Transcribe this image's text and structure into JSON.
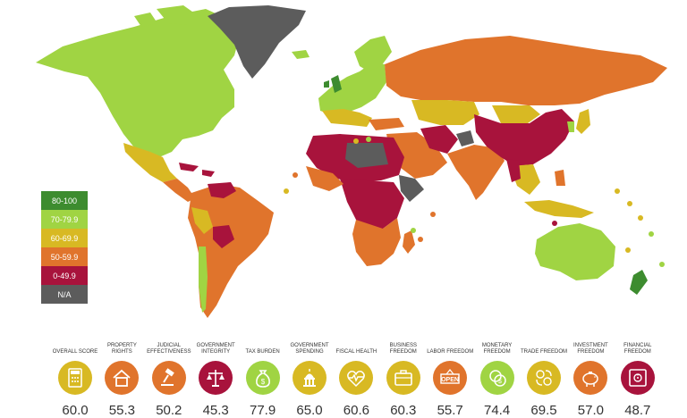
{
  "legend": [
    {
      "label": "80-100",
      "color": "#3d8c2f"
    },
    {
      "label": "70-79.9",
      "color": "#a0d443"
    },
    {
      "label": "60-69.9",
      "color": "#d8b923"
    },
    {
      "label": "50-59.9",
      "color": "#e0742c"
    },
    {
      "label": "0-49.9",
      "color": "#a8133c"
    },
    {
      "label": "N/A",
      "color": "#5c5c5c"
    }
  ],
  "indicators": [
    {
      "label": "OVERALL SCORE",
      "score": "60.0",
      "color": "#d8b923",
      "icon": "calculator-icon"
    },
    {
      "label": "PROPERTY RIGHTS",
      "score": "55.3",
      "color": "#e0742c",
      "icon": "house-icon"
    },
    {
      "label": "JUDICIAL EFFECTIVENESS",
      "score": "50.2",
      "color": "#e0742c",
      "icon": "gavel-icon"
    },
    {
      "label": "GOVERNMENT INTEGRITY",
      "score": "45.3",
      "color": "#a8133c",
      "icon": "scales-icon"
    },
    {
      "label": "TAX BURDEN",
      "score": "77.9",
      "color": "#a0d443",
      "icon": "money-bag-icon"
    },
    {
      "label": "GOVERNMENT SPENDING",
      "score": "65.0",
      "color": "#d8b923",
      "icon": "capitol-icon"
    },
    {
      "label": "FISCAL HEALTH",
      "score": "60.6",
      "color": "#d8b923",
      "icon": "heartbeat-icon"
    },
    {
      "label": "BUSINESS FREEDOM",
      "score": "60.3",
      "color": "#d8b923",
      "icon": "briefcase-icon"
    },
    {
      "label": "LABOR FREEDOM",
      "score": "55.7",
      "color": "#e0742c",
      "icon": "open-sign-icon"
    },
    {
      "label": "MONETARY FREEDOM",
      "score": "74.4",
      "color": "#a0d443",
      "icon": "coins-icon"
    },
    {
      "label": "TRADE FREEDOM",
      "score": "69.5",
      "color": "#d8b923",
      "icon": "trade-icon"
    },
    {
      "label": "INVESTMENT FREEDOM",
      "score": "57.0",
      "color": "#e0742c",
      "icon": "piggy-bank-icon"
    },
    {
      "label": "FINANCIAL FREEDOM",
      "score": "48.7",
      "color": "#a8133c",
      "icon": "safe-icon"
    }
  ],
  "icon_names": {
    "open_sign": "OPEN"
  }
}
